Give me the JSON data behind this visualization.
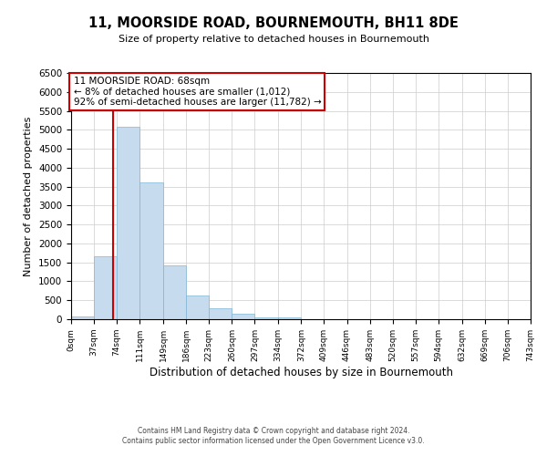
{
  "title": "11, MOORSIDE ROAD, BOURNEMOUTH, BH11 8DE",
  "subtitle": "Size of property relative to detached houses in Bournemouth",
  "xlabel": "Distribution of detached houses by size in Bournemouth",
  "ylabel": "Number of detached properties",
  "footer_lines": [
    "Contains HM Land Registry data © Crown copyright and database right 2024.",
    "Contains public sector information licensed under the Open Government Licence v3.0."
  ],
  "bin_edges": [
    0,
    37,
    74,
    111,
    149,
    186,
    223,
    260,
    297,
    334,
    372,
    409,
    446,
    483,
    520,
    557,
    594,
    632,
    669,
    706,
    743
  ],
  "bar_heights": [
    75,
    1650,
    5080,
    3600,
    1420,
    620,
    300,
    140,
    60,
    40,
    0,
    0,
    0,
    0,
    0,
    0,
    0,
    0,
    0,
    0
  ],
  "bar_color": "#c6dcee",
  "bar_edgecolor": "#7fb5d5",
  "property_size": 68,
  "red_line_color": "#cc0000",
  "annotation_line1": "11 MOORSIDE ROAD: 68sqm",
  "annotation_line2": "← 8% of detached houses are smaller (1,012)",
  "annotation_line3": "92% of semi-detached houses are larger (11,782) →",
  "annotation_border_color": "#cc0000",
  "ylim": [
    0,
    6500
  ],
  "yticks": [
    0,
    500,
    1000,
    1500,
    2000,
    2500,
    3000,
    3500,
    4000,
    4500,
    5000,
    5500,
    6000,
    6500
  ],
  "background_color": "#ffffff",
  "grid_color": "#cccccc"
}
